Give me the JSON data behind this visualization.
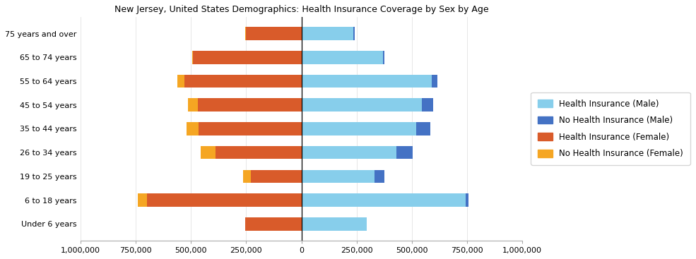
{
  "title": "New Jersey, United States Demographics: Health Insurance Coverage by Sex by Age",
  "age_groups": [
    "Under 6 years",
    "6 to 18 years",
    "19 to 25 years",
    "26 to 34 years",
    "35 to 44 years",
    "45 to 54 years",
    "55 to 64 years",
    "65 to 74 years",
    "75 years and over"
  ],
  "health_ins_male": [
    295000,
    745000,
    330000,
    430000,
    520000,
    545000,
    590000,
    370000,
    235000
  ],
  "no_health_ins_male": [
    0,
    10000,
    45000,
    75000,
    65000,
    50000,
    25000,
    5000,
    5000
  ],
  "health_ins_female": [
    255000,
    700000,
    230000,
    390000,
    465000,
    470000,
    530000,
    490000,
    250000
  ],
  "no_health_ins_female": [
    0,
    40000,
    35000,
    65000,
    55000,
    45000,
    30000,
    5000,
    5000
  ],
  "color_health_male": "#87CEEB",
  "color_no_health_male": "#4472C4",
  "color_health_female": "#D95B2A",
  "color_no_health_female": "#F5A623",
  "xlim": [
    -1000000,
    1000000
  ],
  "xticks": [
    -1000000,
    -750000,
    -500000,
    -250000,
    0,
    250000,
    500000,
    750000,
    1000000
  ],
  "xticklabels": [
    "1,000,000",
    "750,000",
    "500,000",
    "250,000",
    "0",
    "250,000",
    "500,000",
    "750,000",
    "1,000,000"
  ],
  "legend_labels": [
    "Health Insurance (Male)",
    "No Health Insurance (Male)",
    "Health Insurance (Female)",
    "No Health Insurance (Female)"
  ],
  "legend_colors": [
    "#87CEEB",
    "#4472C4",
    "#D95B2A",
    "#F5A623"
  ]
}
